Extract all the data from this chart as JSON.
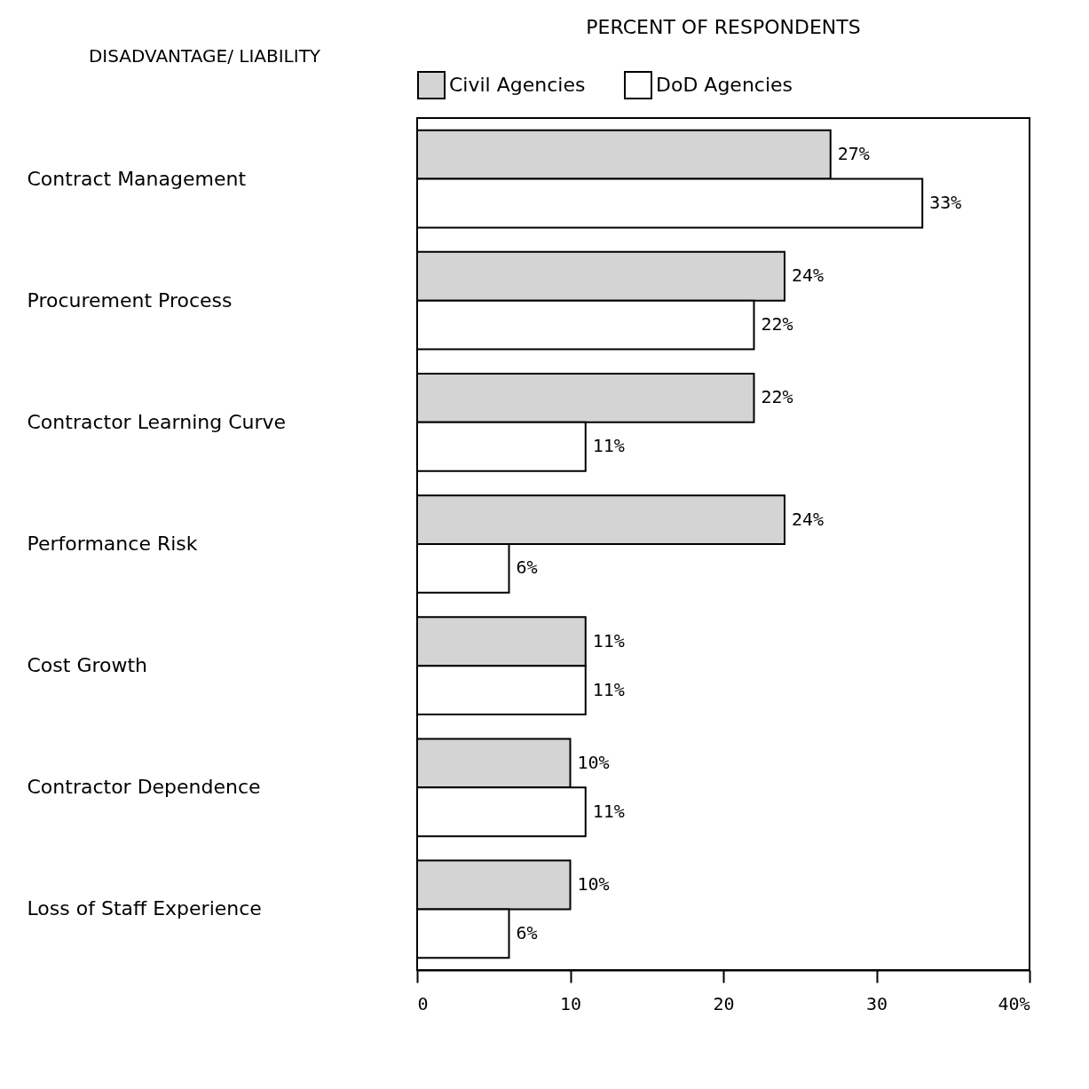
{
  "chart_data": {
    "type": "bar",
    "orientation": "horizontal",
    "title": "PERCENT OF RESPONDENTS",
    "ylabel": "DISADVANTAGE/ LIABILITY",
    "categories": [
      "Contract Management",
      "Procurement Process",
      "Contractor Learning Curve",
      "Performance Risk",
      "Cost Growth",
      "Contractor Dependence",
      "Loss of Staff Experience"
    ],
    "series": [
      {
        "name": "Civil Agencies",
        "color": "#d4d4d4",
        "values": [
          27,
          24,
          22,
          24,
          11,
          10,
          10
        ],
        "value_labels": [
          "27%",
          "24%",
          "22%",
          "24%",
          "11%",
          "10%",
          "10%"
        ]
      },
      {
        "name": "DoD Agencies",
        "color": "#ffffff",
        "values": [
          33,
          22,
          11,
          6,
          11,
          11,
          6
        ],
        "value_labels": [
          "33%",
          "22%",
          "11%",
          "6%",
          "11%",
          "11%",
          "6%"
        ]
      }
    ],
    "xlim": [
      0,
      40
    ],
    "xticks": [
      0,
      10,
      20,
      30,
      {
        "value": 40,
        "label": "40%"
      }
    ],
    "grid": false,
    "legend": "top"
  }
}
